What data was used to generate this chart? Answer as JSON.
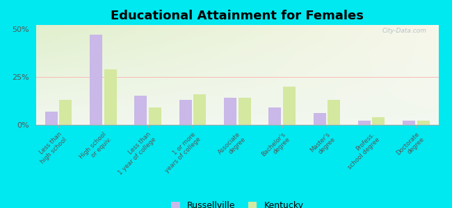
{
  "title": "Educational Attainment for Females",
  "categories": [
    "Less than\nhigh school",
    "High school\nor equiv.",
    "Less than\n1 year of college",
    "1 or more\nyears of college",
    "Associate\ndegree",
    "Bachelor's\ndegree",
    "Master's\ndegree",
    "Profess.\nschool degree",
    "Doctorate\ndegree"
  ],
  "russellville": [
    7,
    47,
    15,
    13,
    14,
    9,
    6,
    2,
    2
  ],
  "kentucky": [
    13,
    29,
    9,
    16,
    14,
    20,
    13,
    4,
    2
  ],
  "russellville_color": "#c9b8e8",
  "kentucky_color": "#d4e8a0",
  "background_color": "#00e8f0",
  "ylim": [
    0,
    52
  ],
  "yticks": [
    0,
    25,
    50
  ],
  "ytick_labels": [
    "0%",
    "25%",
    "50%"
  ],
  "title_fontsize": 13,
  "bar_width": 0.28,
  "legend_labels": [
    "Russellville",
    "Kentucky"
  ],
  "watermark": "City-Data.com"
}
